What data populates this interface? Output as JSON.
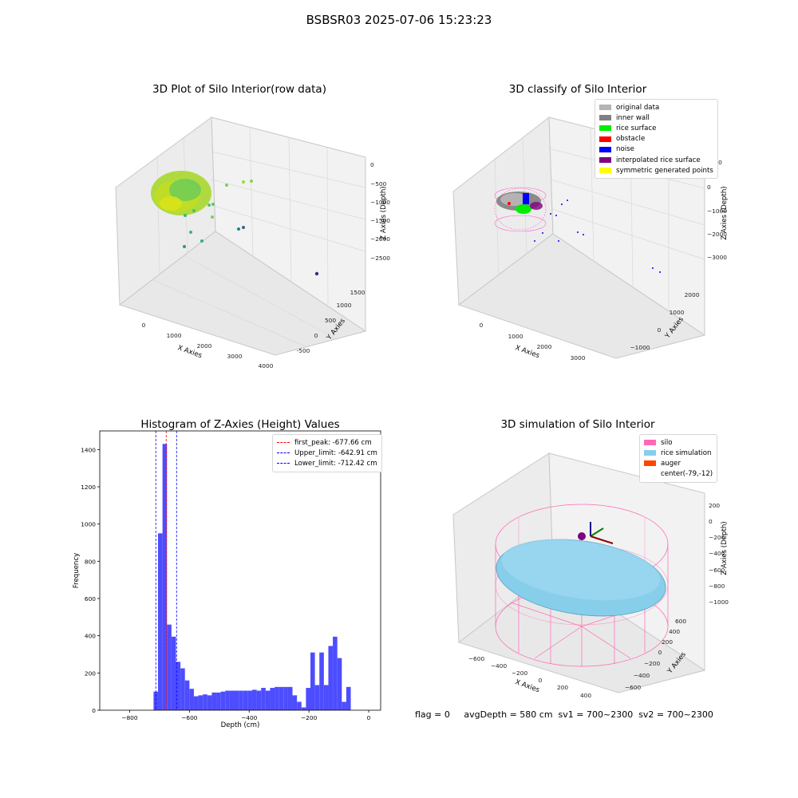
{
  "figure": {
    "title": "BSBSR03 2025-07-06 15:23:23",
    "footer": "flag = 0     avgDepth = 580 cm  sv1 = 700~2300  sv2 = 700~2300"
  },
  "chart_data": [
    {
      "type": "scatter",
      "projection": "3d",
      "title": "3D Plot of Silo Interior(row data)",
      "xlabel": "X Axies",
      "ylabel": "Y Axies",
      "zlabel": "Z Axies (Depth)",
      "xticks": [
        "0",
        "1000",
        "2000",
        "3000",
        "4000"
      ],
      "yticks": [
        "-500",
        "0",
        "500",
        "1000",
        "1500"
      ],
      "zticks": [
        "0",
        "−500",
        "−1000",
        "−1500",
        "−2000",
        "−2500"
      ],
      "colormap": "viridis",
      "notes": "dense ring of points near the silo top plus sparse outliers toward larger depth"
    },
    {
      "type": "scatter",
      "projection": "3d",
      "title": "3D classify of Silo Interior",
      "xlabel": "X Axies",
      "ylabel": "Y Axies",
      "zlabel": "Z Axies (Depth)",
      "xticks": [
        "0",
        "1000",
        "2000",
        "3000"
      ],
      "yticks": [
        "−1000",
        "0",
        "1000",
        "2000"
      ],
      "zticks": [
        "1000",
        "0",
        "−1000",
        "−2000",
        "−3000"
      ],
      "legend_position": "top-right",
      "legend": [
        {
          "label": "original data",
          "color": "#b3b3b3"
        },
        {
          "label": "inner wall",
          "color": "#808080"
        },
        {
          "label": "rice surface",
          "color": "#00ee00"
        },
        {
          "label": "obstacle",
          "color": "#ff0000"
        },
        {
          "label": "noise",
          "color": "#0000ff"
        },
        {
          "label": "interpolated rice surface",
          "color": "#800080"
        },
        {
          "label": "symmetric generated points",
          "color": "#ffff00"
        }
      ]
    },
    {
      "type": "bar",
      "title": "Histogram of Z-Axies (Height) Values",
      "xlabel": "Depth (cm)",
      "ylabel": "Frequency",
      "xlim": [
        -900,
        40
      ],
      "ylim": [
        0,
        1500
      ],
      "xticks": [
        -800,
        -600,
        -400,
        -200,
        0
      ],
      "yticks": [
        0,
        200,
        400,
        600,
        800,
        1000,
        1200,
        1400
      ],
      "bar_color": "#4d4dff",
      "bin_width": 15,
      "bins": [
        {
          "x": -720,
          "value": 100
        },
        {
          "x": -705,
          "value": 950
        },
        {
          "x": -690,
          "value": 1430
        },
        {
          "x": -675,
          "value": 460
        },
        {
          "x": -660,
          "value": 395
        },
        {
          "x": -645,
          "value": 260
        },
        {
          "x": -630,
          "value": 225
        },
        {
          "x": -615,
          "value": 160
        },
        {
          "x": -600,
          "value": 115
        },
        {
          "x": -585,
          "value": 75
        },
        {
          "x": -570,
          "value": 80
        },
        {
          "x": -555,
          "value": 85
        },
        {
          "x": -540,
          "value": 80
        },
        {
          "x": -525,
          "value": 95
        },
        {
          "x": -510,
          "value": 95
        },
        {
          "x": -495,
          "value": 100
        },
        {
          "x": -480,
          "value": 105
        },
        {
          "x": -465,
          "value": 105
        },
        {
          "x": -450,
          "value": 105
        },
        {
          "x": -435,
          "value": 105
        },
        {
          "x": -420,
          "value": 105
        },
        {
          "x": -405,
          "value": 105
        },
        {
          "x": -390,
          "value": 110
        },
        {
          "x": -375,
          "value": 105
        },
        {
          "x": -360,
          "value": 120
        },
        {
          "x": -345,
          "value": 105
        },
        {
          "x": -330,
          "value": 120
        },
        {
          "x": -315,
          "value": 125
        },
        {
          "x": -300,
          "value": 125
        },
        {
          "x": -285,
          "value": 125
        },
        {
          "x": -270,
          "value": 125
        },
        {
          "x": -255,
          "value": 80
        },
        {
          "x": -240,
          "value": 45
        },
        {
          "x": -225,
          "value": 15
        },
        {
          "x": -210,
          "value": 120
        },
        {
          "x": -195,
          "value": 310
        },
        {
          "x": -180,
          "value": 135
        },
        {
          "x": -165,
          "value": 310
        },
        {
          "x": -150,
          "value": 135
        },
        {
          "x": -135,
          "value": 345
        },
        {
          "x": -120,
          "value": 395
        },
        {
          "x": -105,
          "value": 280
        },
        {
          "x": -90,
          "value": 45
        },
        {
          "x": -75,
          "value": 125
        }
      ],
      "vlines": [
        {
          "x": -677.66,
          "color": "#ff0000",
          "label": "first_peak: -677.66 cm"
        },
        {
          "x": -642.91,
          "color": "#0000ff",
          "label": "Upper_limit: -642.91 cm"
        },
        {
          "x": -712.42,
          "color": "#0000ff",
          "label": "Lower_limit: -712.42 cm"
        }
      ],
      "legend_position": "top-right"
    },
    {
      "type": "scatter",
      "projection": "3d",
      "title": "3D simulation of Silo Interior",
      "xlabel": "X Axies",
      "ylabel": "Y Axies",
      "zlabel": "Z Axies (Depth)",
      "xticks": [
        "−600",
        "−400",
        "−200",
        "0",
        "200",
        "400"
      ],
      "yticks": [
        "−600",
        "−400",
        "−200",
        "0",
        "200",
        "400",
        "600"
      ],
      "zticks": [
        "200",
        "0",
        "−200",
        "−400",
        "−600",
        "−800",
        "−1000"
      ],
      "legend_position": "top-right",
      "legend": [
        {
          "label": "silo",
          "color": "#ff69b4"
        },
        {
          "label": "rice simulation",
          "color": "#87ceeb"
        },
        {
          "label": "auger",
          "color": "#ff4500"
        },
        {
          "label": "center(-79,-12)",
          "color": ""
        }
      ]
    }
  ]
}
